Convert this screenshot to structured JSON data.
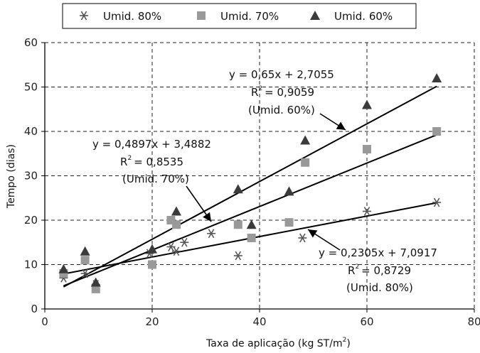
{
  "chart_data": {
    "type": "scatter",
    "xlabel": "Taxa de aplicação (kg ST/m",
    "xlabel_sup": "2",
    "xlabel_close": ")",
    "ylabel": "Tempo (dias)",
    "xlim": [
      0,
      80
    ],
    "ylim": [
      0,
      60
    ],
    "xticks": [
      0,
      20,
      40,
      60,
      80
    ],
    "yticks": [
      0,
      10,
      20,
      30,
      40,
      50,
      60
    ],
    "grid": "dashed",
    "legend_position": "top",
    "series": [
      {
        "name": "Umid. 80%",
        "marker": "asterisk",
        "color": "#555555",
        "points": [
          [
            3.5,
            7
          ],
          [
            7.5,
            8
          ],
          [
            9.5,
            5.5
          ],
          [
            19.5,
            12.5
          ],
          [
            23.5,
            14
          ],
          [
            24.5,
            13
          ],
          [
            26,
            15
          ],
          [
            31,
            17
          ],
          [
            36,
            12
          ],
          [
            48,
            16
          ],
          [
            60,
            22
          ],
          [
            73,
            24
          ]
        ],
        "trendline": {
          "slope": 0.2305,
          "intercept": 7.0917,
          "x_range": [
            3.5,
            73
          ]
        }
      },
      {
        "name": "Umid. 70%",
        "marker": "square",
        "color": "#999999",
        "points": [
          [
            3.5,
            8
          ],
          [
            7.5,
            11
          ],
          [
            9.5,
            4.5
          ],
          [
            20,
            10
          ],
          [
            23.5,
            20
          ],
          [
            24.5,
            19
          ],
          [
            36,
            19
          ],
          [
            38.5,
            16
          ],
          [
            45.5,
            19.5
          ],
          [
            48.5,
            33
          ],
          [
            60,
            36
          ],
          [
            73,
            40
          ]
        ],
        "trendline": {
          "slope": 0.4897,
          "intercept": 3.4882,
          "x_range": [
            3.5,
            73
          ]
        }
      },
      {
        "name": "Umid. 60%",
        "marker": "triangle",
        "color": "#3b3b3b",
        "points": [
          [
            3.5,
            9
          ],
          [
            7.5,
            13
          ],
          [
            9.5,
            6
          ],
          [
            20,
            13.5
          ],
          [
            24.5,
            22
          ],
          [
            36,
            27
          ],
          [
            38.5,
            19
          ],
          [
            45.5,
            26.5
          ],
          [
            48.5,
            38
          ],
          [
            60,
            46
          ],
          [
            73,
            52
          ]
        ],
        "trendline": {
          "slope": 0.65,
          "intercept": 2.7055,
          "x_range": [
            3.5,
            73
          ]
        }
      }
    ],
    "annotations": [
      {
        "lines": [
          "y = 0,65x + 2,7055",
          "R",
          "= 0,9059",
          "(Umid. 60%)"
        ],
        "sup": "2"
      },
      {
        "lines": [
          "y = 0,4897x + 3,4882",
          "R",
          "= 0,8535",
          "(Umid. 70%)"
        ],
        "sup": "2"
      },
      {
        "lines": [
          "y = 0,2305x + 7,0917",
          "R",
          "= 0,8729",
          "(Umid. 80%)"
        ],
        "sup": "2"
      }
    ]
  }
}
